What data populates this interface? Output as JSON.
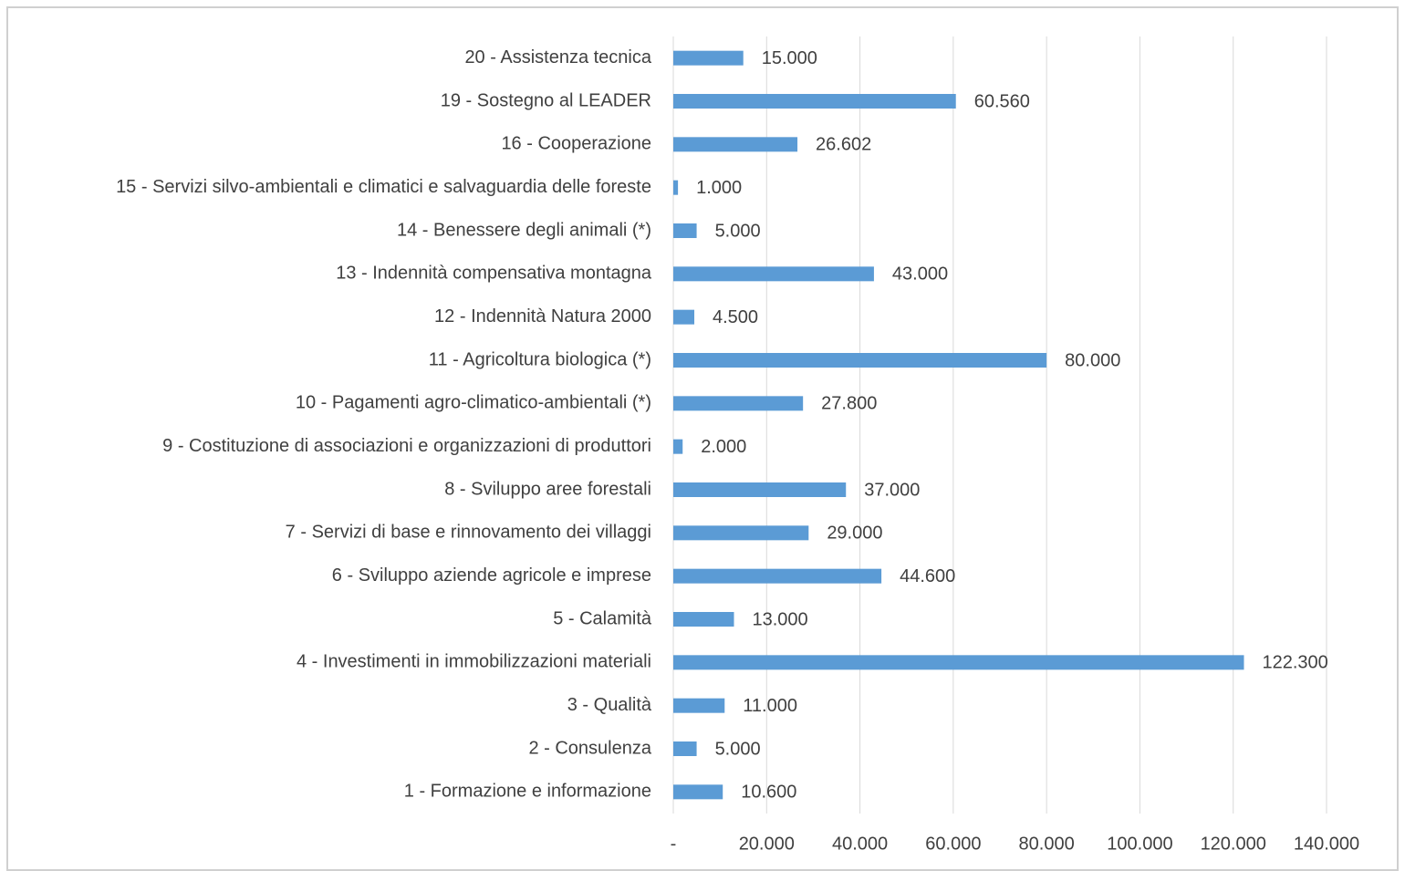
{
  "chart_data": {
    "type": "bar",
    "orientation": "horizontal",
    "categories": [
      "20 - Assistenza tecnica",
      "19 - Sostegno al LEADER",
      "16 - Cooperazione",
      "15 - Servizi silvo-ambientali e climatici e salvaguardia delle foreste",
      "14 - Benessere degli animali (*)",
      "13 - Indennità compensativa montagna",
      "12 - Indennità Natura 2000",
      "11 - Agricoltura biologica (*)",
      "10 - Pagamenti agro-climatico-ambientali (*)",
      "9 - Costituzione di associazioni e organizzazioni di produttori",
      "8 - Sviluppo aree forestali",
      "7 - Servizi di base e rinnovamento dei villaggi",
      "6 - Sviluppo aziende agricole e imprese",
      "5 - Calamità",
      "4 - Investimenti in immobilizzazioni materiali",
      "3 - Qualità",
      "2 - Consulenza",
      "1 - Formazione e informazione"
    ],
    "values": [
      15000,
      60560,
      26602,
      1000,
      5000,
      43000,
      4500,
      80000,
      27800,
      2000,
      37000,
      29000,
      44600,
      13000,
      122300,
      11000,
      5000,
      10600
    ],
    "value_labels": [
      "15.000",
      "60.560",
      "26.602",
      "1.000",
      "5.000",
      "43.000",
      "4.500",
      "80.000",
      "27.800",
      "2.000",
      "37.000",
      "29.000",
      "44.600",
      "13.000",
      "122.300",
      "11.000",
      "5.000",
      "10.600"
    ],
    "color": "#5b9bd5",
    "xlim": [
      0,
      140000
    ],
    "xticks": [
      {
        "value": 0,
        "label": "-"
      },
      {
        "value": 20000,
        "label": "20.000"
      },
      {
        "value": 40000,
        "label": "40.000"
      },
      {
        "value": 60000,
        "label": "60.000"
      },
      {
        "value": 80000,
        "label": "80.000"
      },
      {
        "value": 100000,
        "label": "100.000"
      },
      {
        "value": 120000,
        "label": "120.000"
      },
      {
        "value": 140000,
        "label": "140.000"
      }
    ],
    "grid": true
  }
}
